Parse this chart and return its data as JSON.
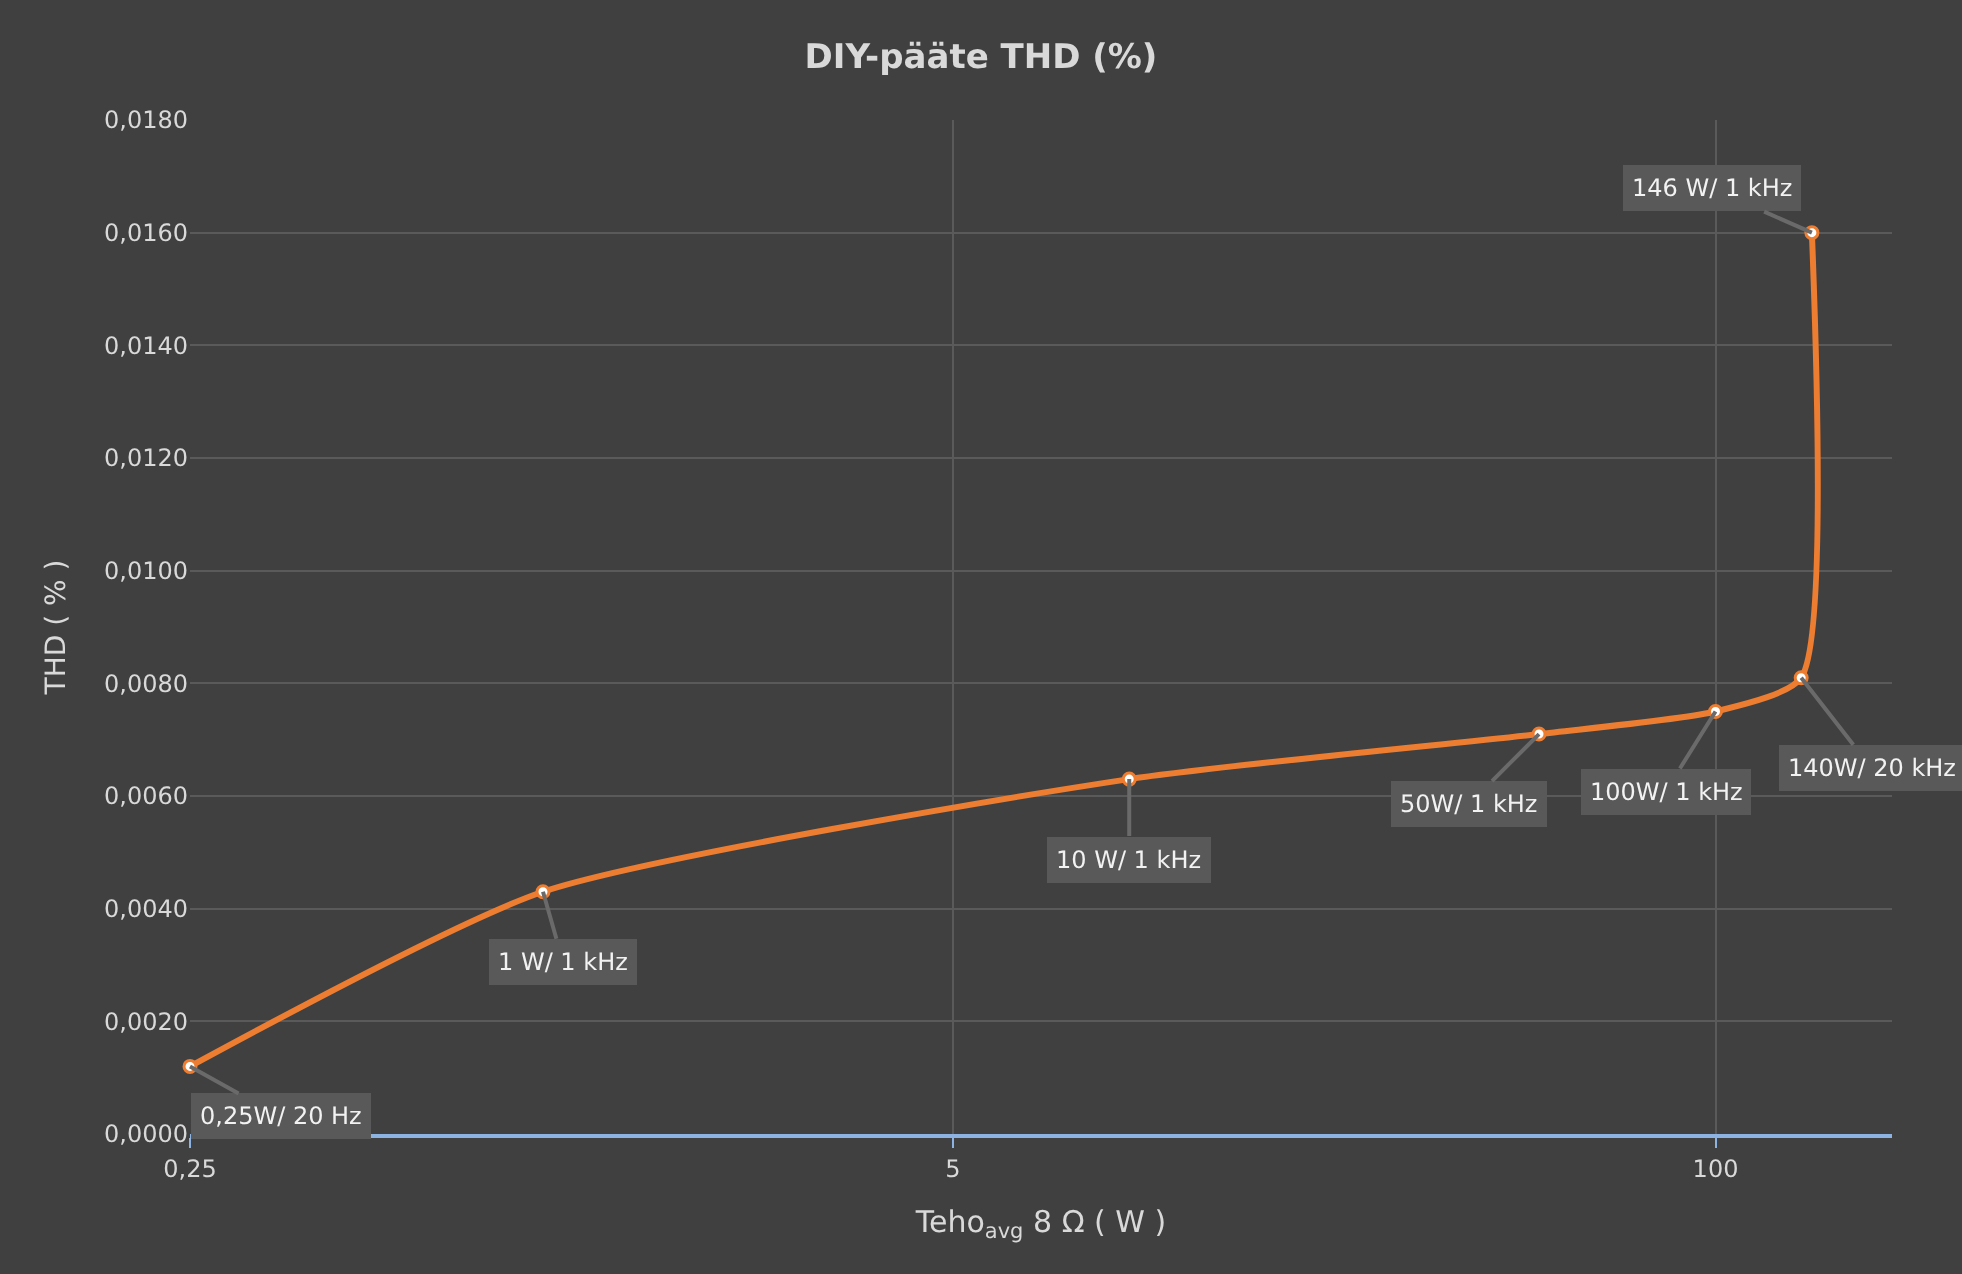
{
  "chart_data": {
    "type": "line",
    "title": "DIY-pääte THD (%)",
    "xlabel": "Teho$_{avg}$ 8 Ω ( W )",
    "ylabel": "THD ( % )",
    "x": [
      0.25,
      1,
      10,
      50,
      100,
      140,
      146
    ],
    "series": [
      {
        "color": "#ed7d31",
        "values": [
          0.0012,
          0.0043,
          0.0063,
          0.0071,
          0.0075,
          0.0081,
          0.016
        ]
      }
    ],
    "annotations": [
      {
        "text": "0,25W/ 20 Hz",
        "x": 0.25,
        "y": 0.0012
      },
      {
        "text": "1 W/ 1 kHz",
        "x": 1,
        "y": 0.0043
      },
      {
        "text": "10 W/ 1 kHz",
        "x": 10,
        "y": 0.0063
      },
      {
        "text": "50W/ 1 kHz",
        "x": 50,
        "y": 0.0071
      },
      {
        "text": "100W/ 1 kHz",
        "x": 100,
        "y": 0.0075
      },
      {
        "text": "140W/ 20 kHz",
        "x": 140,
        "y": 0.0081
      },
      {
        "text": "146 W/ 1 kHz",
        "x": 146,
        "y": 0.016
      }
    ],
    "log": "x",
    "xlim": [
      0.25,
      200
    ],
    "xticks": [
      {
        "value": 0.25,
        "label": "0,25"
      },
      5,
      100
    ],
    "ylim": [
      0,
      0.018
    ],
    "yticks": [
      {
        "value": 0,
        "label": "0,0000"
      },
      {
        "value": 0.002,
        "label": "0,0020"
      },
      {
        "value": 0.004,
        "label": "0,0040"
      },
      {
        "value": 0.006,
        "label": "0,0060"
      },
      {
        "value": 0.008,
        "label": "0,0080"
      },
      {
        "value": 0.01,
        "label": "0,0100"
      },
      {
        "value": 0.012,
        "label": "0,0120"
      },
      {
        "value": 0.014,
        "label": "0,0140"
      },
      {
        "value": 0.016,
        "label": "0,0160"
      },
      {
        "value": 0.018,
        "label": "0,0180"
      }
    ],
    "grid": true,
    "marker": "circle"
  }
}
